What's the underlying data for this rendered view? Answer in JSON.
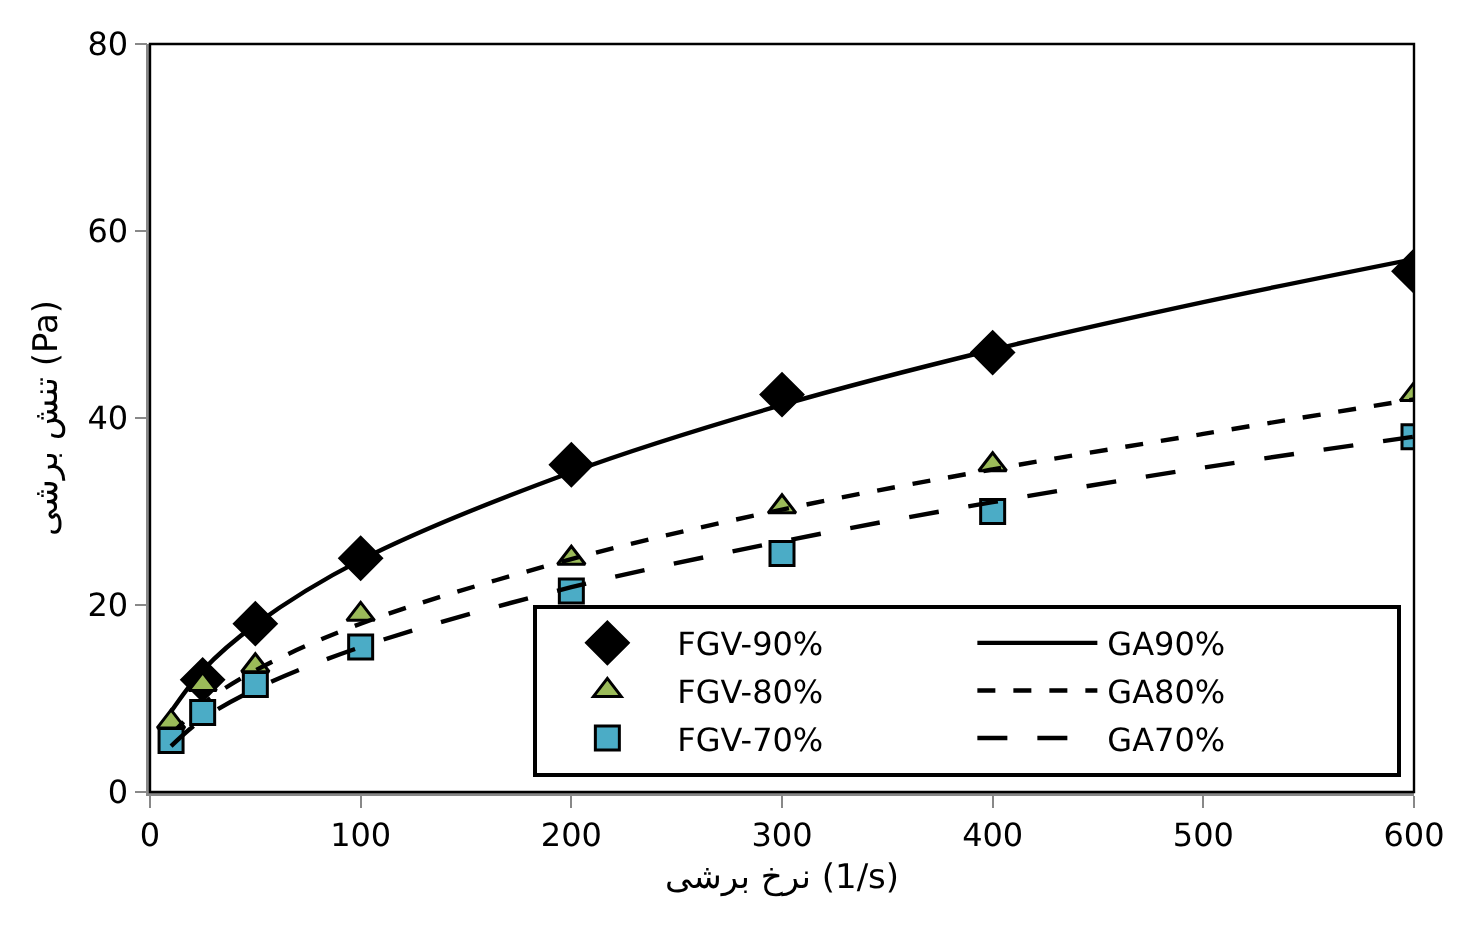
{
  "chart_data": {
    "type": "scatter",
    "xlabel": "نرخ برشی (1/s)",
    "ylabel": "تنش برشی (Pa)",
    "xlim": [
      0,
      600
    ],
    "xticks": [
      0,
      100,
      200,
      300,
      400,
      500,
      600
    ],
    "ylim": [
      0,
      80
    ],
    "yticks": [
      0,
      20,
      40,
      60,
      80
    ],
    "legend": "bottom right",
    "series": [
      {
        "name": "FGV-90%",
        "marker": "diamond",
        "color": "#000000",
        "x": [
          25,
          50,
          100,
          200,
          300,
          400,
          600
        ],
        "values": [
          12,
          18,
          25,
          35,
          42.5,
          47,
          55.7
        ]
      },
      {
        "name": "GA90%",
        "type": "line",
        "line_style": "solid",
        "color": "#000000",
        "x": [
          10,
          25,
          50,
          100,
          200,
          300,
          400,
          500,
          600
        ],
        "values": [
          8.6,
          13.0,
          17.9,
          24.8,
          34.2,
          41.4,
          47.3,
          52.4,
          57.0
        ]
      },
      {
        "name": "FGV-80%",
        "marker": "triangle",
        "color": "#9bbb59",
        "x": [
          10,
          25,
          50,
          100,
          200,
          300,
          400,
          600
        ],
        "values": [
          7.5,
          11.5,
          13.5,
          19,
          25,
          30.5,
          35,
          42.5
        ]
      },
      {
        "name": "GA80%",
        "type": "line",
        "line_style": "dashed",
        "color": "#000000",
        "x": [
          10,
          25,
          50,
          100,
          200,
          300,
          400,
          500,
          600
        ],
        "values": [
          6.1,
          9.4,
          13.0,
          18.0,
          24.9,
          30.2,
          34.5,
          38.3,
          42.0
        ]
      },
      {
        "name": "FGV-70%",
        "marker": "square",
        "color": "#4bacc6",
        "x": [
          10,
          25,
          50,
          100,
          200,
          300,
          400,
          600
        ],
        "values": [
          5.5,
          8.5,
          11.5,
          15.5,
          21.5,
          25.5,
          30,
          38
        ]
      },
      {
        "name": "GA70%",
        "type": "line",
        "line_style": "longdash",
        "color": "#000000",
        "x": [
          10,
          25,
          50,
          100,
          200,
          300,
          400,
          500,
          600
        ],
        "values": [
          4.9,
          7.8,
          11.0,
          15.5,
          21.9,
          26.8,
          31.0,
          34.7,
          38.0
        ]
      }
    ]
  }
}
